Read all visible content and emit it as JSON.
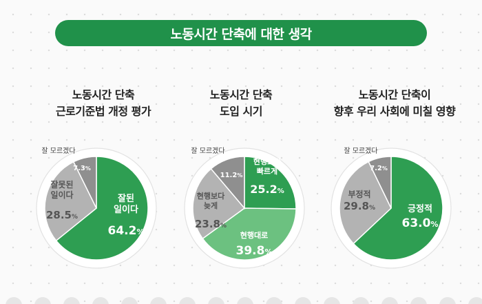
{
  "header": {
    "title": "노동시간 단축에 대한 생각"
  },
  "chart_data": [
    {
      "type": "pie",
      "title_lines": [
        "노동시간 단축",
        "근로기준법 개정 평가"
      ],
      "unit": "%",
      "slices": [
        {
          "name": "잘된 일이다",
          "label_lines": [
            "잘된",
            "일이다"
          ],
          "value": 64.2,
          "value_text": "64.2",
          "color": "#2e9e52"
        },
        {
          "name": "잘못된 일이다",
          "label_lines": [
            "잘못된",
            "일이다"
          ],
          "value": 28.5,
          "value_text": "28.5",
          "color": "#b3b3b3"
        },
        {
          "name": "잘 모르겠다",
          "label_lines": [
            "잘 모르겠다"
          ],
          "value": 7.3,
          "value_text": "7.3",
          "color": "#8f8f8f"
        }
      ]
    },
    {
      "type": "pie",
      "title_lines": [
        "노동시간 단축",
        "도입 시기"
      ],
      "unit": "%",
      "slices": [
        {
          "name": "현행보다 빠르게",
          "label_lines": [
            "현행보다",
            "빠르게"
          ],
          "value": 25.2,
          "value_text": "25.2",
          "color": "#2e9e52"
        },
        {
          "name": "현행대로",
          "label_lines": [
            "현행대로"
          ],
          "value": 39.8,
          "value_text": "39.8",
          "color": "#6cc180"
        },
        {
          "name": "현행보다 늦게",
          "label_lines": [
            "현행보다",
            "늦게"
          ],
          "value": 23.8,
          "value_text": "23.8",
          "color": "#b3b3b3"
        },
        {
          "name": "잘 모르겠다",
          "label_lines": [
            "잘 모르겠다"
          ],
          "value": 11.2,
          "value_text": "11.2",
          "color": "#8f8f8f"
        }
      ]
    },
    {
      "type": "pie",
      "title_lines": [
        "노동시간 단축이",
        "향후 우리 사회에 미칠 영향"
      ],
      "unit": "%",
      "slices": [
        {
          "name": "긍정적",
          "label_lines": [
            "긍정적"
          ],
          "value": 63.0,
          "value_text": "63.0",
          "color": "#2e9e52"
        },
        {
          "name": "부정적",
          "label_lines": [
            "부정적"
          ],
          "value": 29.8,
          "value_text": "29.8",
          "color": "#b3b3b3"
        },
        {
          "name": "잘 모르겠다",
          "label_lines": [
            "잘 모르겠다"
          ],
          "value": 7.2,
          "value_text": "7.2",
          "color": "#8f8f8f"
        }
      ]
    }
  ]
}
